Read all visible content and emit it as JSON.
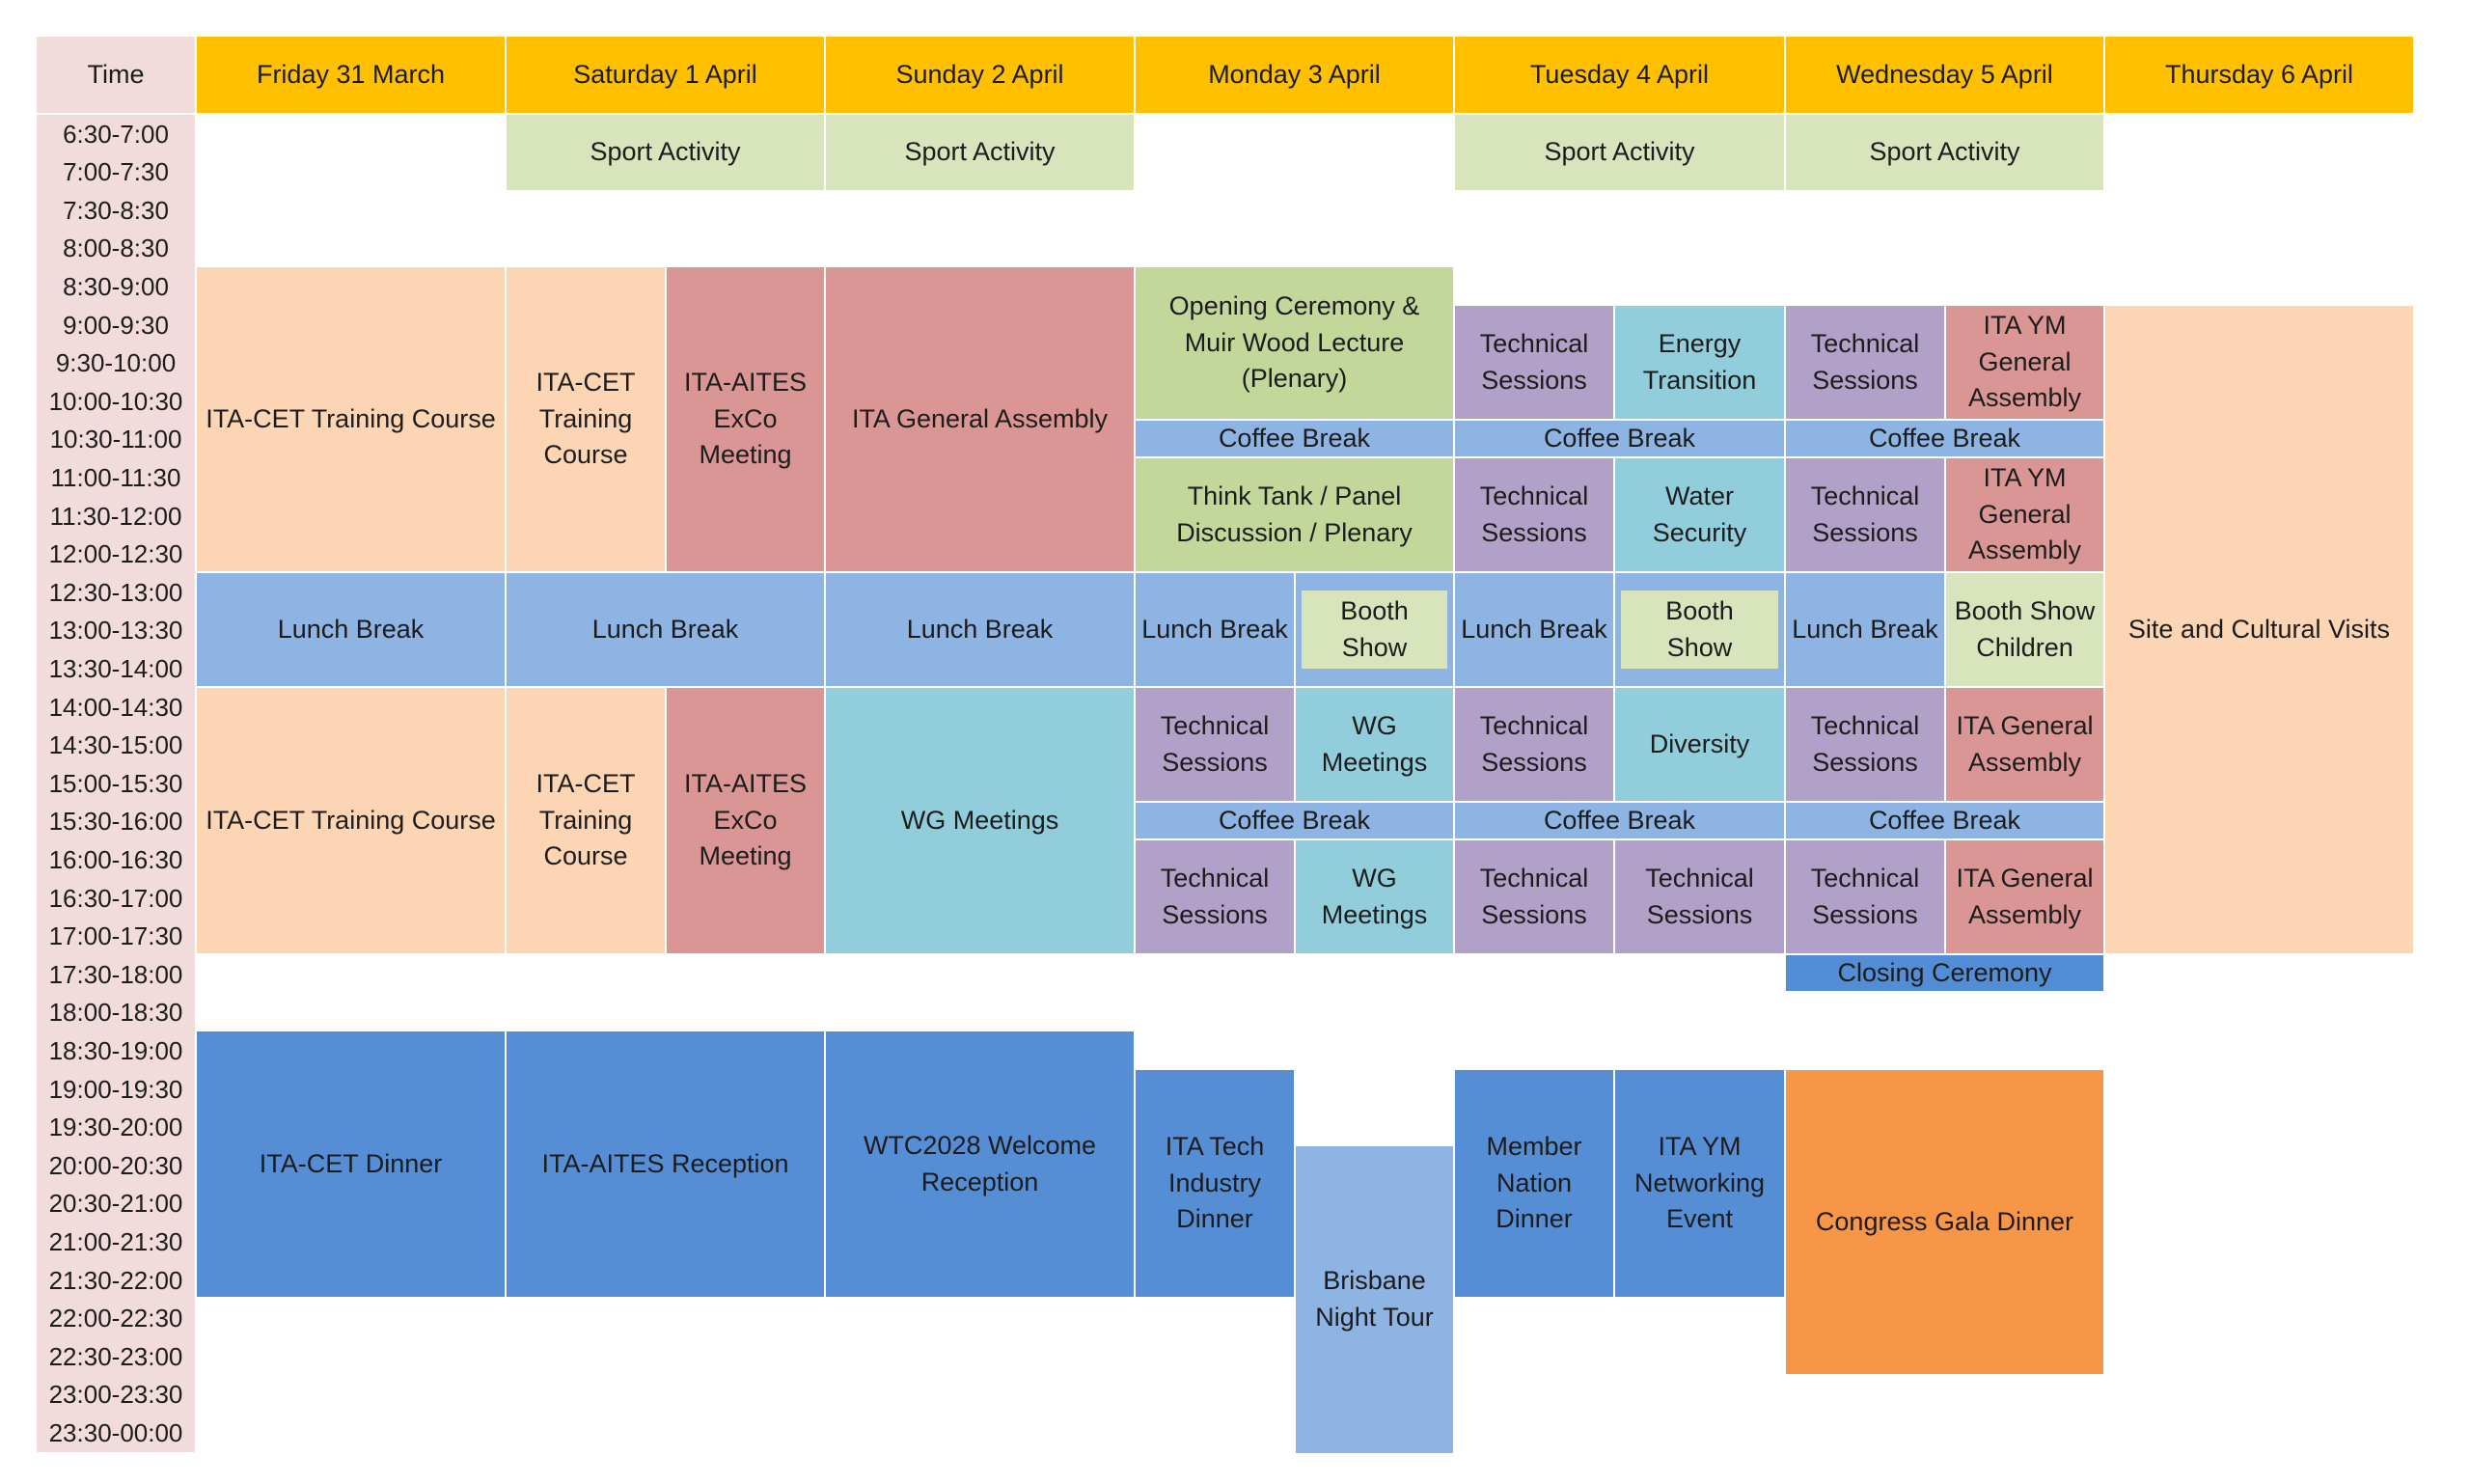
{
  "colors": {
    "header": "#ffc000",
    "time_column": "#f2dcdb",
    "sport": "#d8e4bc",
    "training": "#fcd5b4",
    "rose": "#da9694",
    "lunch": "#8db4e2",
    "plenary": "#c4d79b",
    "technical": "#b1a0c7",
    "teal": "#92cddc",
    "evening": "#558ed5",
    "closing": "#538dd5",
    "gala": "#f79646",
    "booth": "#d8e4bc"
  },
  "schedule": {
    "time_header": "Time",
    "days": [
      "Friday 31 March",
      "Saturday 1 April",
      "Sunday 2 April",
      "Monday 3 April",
      "Tuesday 4 April",
      "Wednesday 5 April",
      "Thursday 6 April"
    ],
    "times": [
      "6:30-7:00",
      "7:00-7:30",
      "7:30-8:30",
      "8:00-8:30",
      "8:30-9:00",
      "9:00-9:30",
      "9:30-10:00",
      "10:00-10:30",
      "10:30-11:00",
      "11:00-11:30",
      "11:30-12:00",
      "12:00-12:30",
      "12:30-13:00",
      "13:00-13:30",
      "13:30-14:00",
      "14:00-14:30",
      "14:30-15:00",
      "15:00-15:30",
      "15:30-16:00",
      "16:00-16:30",
      "16:30-17:00",
      "17:00-17:30",
      "17:30-18:00",
      "18:00-18:30",
      "18:30-19:00",
      "19:00-19:30",
      "19:30-20:00",
      "20:00-20:30",
      "20:30-21:00",
      "21:00-21:30",
      "21:30-22:00",
      "22:00-22:30",
      "22:30-23:00",
      "23:00-23:30",
      "23:30-00:00"
    ],
    "events": {
      "sat_sport": "Sport Activity",
      "sun_sport": "Sport Activity",
      "tue_sport": "Sport Activity",
      "wed_sport": "Sport Activity",
      "fri_training_am": "ITA-CET Training Course",
      "sat_training_am": "ITA-CET\nTraining\nCourse",
      "sat_exco_am": "ITA-AITES\nExCo\nMeeting",
      "sun_general_assembly": "ITA General Assembly",
      "mon_opening": "Opening Ceremony &\nMuir Wood Lecture\n(Plenary)",
      "mon_coffee_am": "Coffee Break",
      "mon_think_tank": "Think Tank / Panel\nDiscussion / Plenary",
      "tue_tech_am1": "Technical\nSessions",
      "tue_energy": "Energy\nTransition",
      "tue_coffee_am": "Coffee Break",
      "tue_tech_am2": "Technical\nSessions",
      "tue_water": "Water\nSecurity",
      "wed_tech_am1": "Technical\nSessions",
      "wed_ym_am1": "ITA YM\nGeneral\nAssembly",
      "wed_coffee_am": "Coffee Break",
      "wed_tech_am2": "Technical\nSessions",
      "wed_ym_am2": "ITA YM\nGeneral\nAssembly",
      "thu_visits": "Site and Cultural Visits",
      "fri_lunch": "Lunch Break",
      "sat_lunch": "Lunch Break",
      "sun_lunch": "Lunch Break",
      "mon_lunch": "Lunch Break",
      "mon_booth": "Booth Show",
      "tue_lunch": "Lunch Break",
      "tue_booth": "Booth Show",
      "wed_lunch": "Lunch Break",
      "wed_booth_children": "Booth Show\nChildren",
      "fri_training_pm": "ITA-CET Training Course",
      "sat_training_pm": "ITA-CET\nTraining\nCourse",
      "sat_exco_pm": "ITA-AITES\nExCo\nMeeting",
      "sun_wg": "WG Meetings",
      "mon_tech_pm1": "Technical\nSessions",
      "mon_wg_pm1": "WG\nMeetings",
      "mon_coffee_pm": "Coffee Break",
      "mon_tech_pm2": "Technical\nSessions",
      "mon_wg_pm2": "WG\nMeetings",
      "tue_tech_pm1": "Technical\nSessions",
      "tue_diversity": "Diversity",
      "tue_coffee_pm": "Coffee Break",
      "tue_tech_pm2": "Technical\nSessions",
      "tue_tech_pm3": "Technical\nSessions",
      "wed_tech_pm1": "Technical\nSessions",
      "wed_ga_pm1": "ITA General\nAssembly",
      "wed_coffee_pm": "Coffee Break",
      "wed_tech_pm2": "Technical\nSessions",
      "wed_ga_pm2": "ITA General\nAssembly",
      "wed_closing": "Closing Ceremony",
      "fri_dinner": "ITA-CET Dinner",
      "sat_reception": "ITA-AITES Reception",
      "sun_welcome": "WTC2028 Welcome\nReception",
      "mon_tech_dinner": "ITA Tech\nIndustry\nDinner",
      "mon_night_tour": "Brisbane\nNight Tour",
      "tue_member_dinner": "Member\nNation\nDinner",
      "tue_ym_networking": "ITA YM\nNetworking\nEvent",
      "wed_gala": "Congress Gala Dinner"
    }
  }
}
